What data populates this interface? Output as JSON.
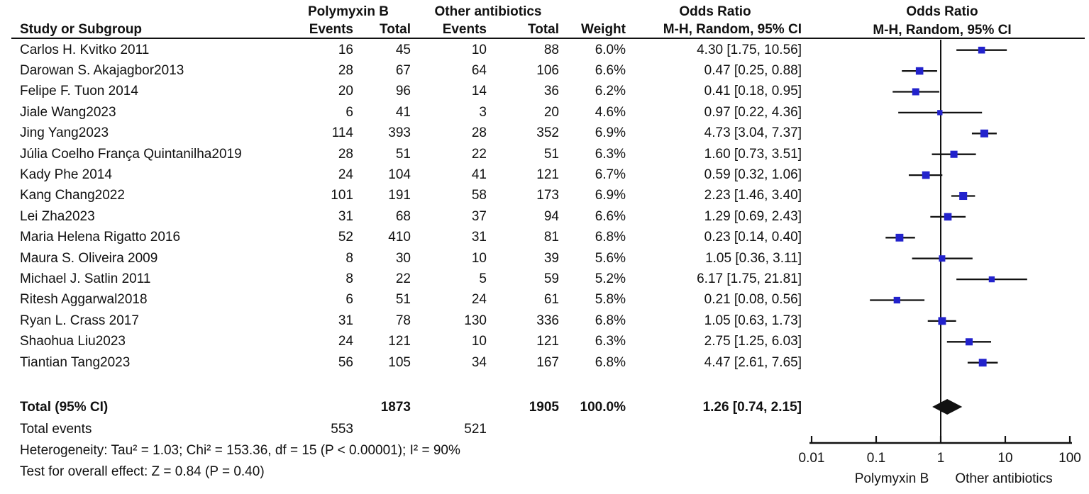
{
  "header": {
    "group1": "Polymyxin B",
    "group2": "Other antibiotics",
    "or_col_title": "Odds Ratio",
    "or_plot_title": "Odds Ratio",
    "study": "Study or Subgroup",
    "events1": "Events",
    "total1": "Total",
    "events2": "Events",
    "total2": "Total",
    "weight": "Weight",
    "or_method": "M-H, Random, 95% CI",
    "or_plot_method": "M-H, Random, 95% CI"
  },
  "chart_data": {
    "type": "scatter",
    "subtype": "forest-plot",
    "x_scale": "log10",
    "x_ticks": [
      "0.01",
      "0.1",
      "1",
      "10",
      "100"
    ],
    "x_tick_values": [
      0.01,
      0.1,
      1,
      10,
      100
    ],
    "xlim": [
      0.01,
      100
    ],
    "axis_left_label": "Polymyxin B",
    "axis_right_label": "Other antibiotics",
    "marker_color": "#2222cc",
    "line_color": "#111111",
    "studies": [
      {
        "name": "Carlos H. Kvitko 2011",
        "events1": 16,
        "total1": 45,
        "events2": 10,
        "total2": 88,
        "weight": "6.0%",
        "weight_value": 6.0,
        "or": 4.3,
        "ci_low": 1.75,
        "ci_high": 10.56,
        "or_label": "4.30 [1.75, 10.56]"
      },
      {
        "name": "Darowan S. Akajagbor2013",
        "events1": 28,
        "total1": 67,
        "events2": 64,
        "total2": 106,
        "weight": "6.6%",
        "weight_value": 6.6,
        "or": 0.47,
        "ci_low": 0.25,
        "ci_high": 0.88,
        "or_label": "0.47 [0.25, 0.88]"
      },
      {
        "name": "Felipe F. Tuon 2014",
        "events1": 20,
        "total1": 96,
        "events2": 14,
        "total2": 36,
        "weight": "6.2%",
        "weight_value": 6.2,
        "or": 0.41,
        "ci_low": 0.18,
        "ci_high": 0.95,
        "or_label": "0.41 [0.18, 0.95]"
      },
      {
        "name": "Jiale Wang2023",
        "events1": 6,
        "total1": 41,
        "events2": 3,
        "total2": 20,
        "weight": "4.6%",
        "weight_value": 4.6,
        "or": 0.97,
        "ci_low": 0.22,
        "ci_high": 4.36,
        "or_label": "0.97 [0.22, 4.36]"
      },
      {
        "name": "Jing Yang2023",
        "events1": 114,
        "total1": 393,
        "events2": 28,
        "total2": 352,
        "weight": "6.9%",
        "weight_value": 6.9,
        "or": 4.73,
        "ci_low": 3.04,
        "ci_high": 7.37,
        "or_label": "4.73 [3.04, 7.37]"
      },
      {
        "name": "Júlia Coelho França Quintanilha2019",
        "events1": 28,
        "total1": 51,
        "events2": 22,
        "total2": 51,
        "weight": "6.3%",
        "weight_value": 6.3,
        "or": 1.6,
        "ci_low": 0.73,
        "ci_high": 3.51,
        "or_label": "1.60 [0.73, 3.51]"
      },
      {
        "name": "Kady Phe 2014",
        "events1": 24,
        "total1": 104,
        "events2": 41,
        "total2": 121,
        "weight": "6.7%",
        "weight_value": 6.7,
        "or": 0.59,
        "ci_low": 0.32,
        "ci_high": 1.06,
        "or_label": "0.59 [0.32, 1.06]"
      },
      {
        "name": "Kang Chang2022",
        "events1": 101,
        "total1": 191,
        "events2": 58,
        "total2": 173,
        "weight": "6.9%",
        "weight_value": 6.9,
        "or": 2.23,
        "ci_low": 1.46,
        "ci_high": 3.4,
        "or_label": "2.23 [1.46, 3.40]"
      },
      {
        "name": "Lei Zha2023",
        "events1": 31,
        "total1": 68,
        "events2": 37,
        "total2": 94,
        "weight": "6.6%",
        "weight_value": 6.6,
        "or": 1.29,
        "ci_low": 0.69,
        "ci_high": 2.43,
        "or_label": "1.29 [0.69, 2.43]"
      },
      {
        "name": "Maria Helena Rigatto 2016",
        "events1": 52,
        "total1": 410,
        "events2": 31,
        "total2": 81,
        "weight": "6.8%",
        "weight_value": 6.8,
        "or": 0.23,
        "ci_low": 0.14,
        "ci_high": 0.4,
        "or_label": "0.23 [0.14, 0.40]"
      },
      {
        "name": "Maura S. Oliveira 2009",
        "events1": 8,
        "total1": 30,
        "events2": 10,
        "total2": 39,
        "weight": "5.6%",
        "weight_value": 5.6,
        "or": 1.05,
        "ci_low": 0.36,
        "ci_high": 3.11,
        "or_label": "1.05 [0.36, 3.11]"
      },
      {
        "name": "Michael J. Satlin 2011",
        "events1": 8,
        "total1": 22,
        "events2": 5,
        "total2": 59,
        "weight": "5.2%",
        "weight_value": 5.2,
        "or": 6.17,
        "ci_low": 1.75,
        "ci_high": 21.81,
        "or_label": "6.17 [1.75, 21.81]"
      },
      {
        "name": "Ritesh Aggarwal2018",
        "events1": 6,
        "total1": 51,
        "events2": 24,
        "total2": 61,
        "weight": "5.8%",
        "weight_value": 5.8,
        "or": 0.21,
        "ci_low": 0.08,
        "ci_high": 0.56,
        "or_label": "0.21 [0.08, 0.56]"
      },
      {
        "name": "Ryan L. Crass 2017",
        "events1": 31,
        "total1": 78,
        "events2": 130,
        "total2": 336,
        "weight": "6.8%",
        "weight_value": 6.8,
        "or": 1.05,
        "ci_low": 0.63,
        "ci_high": 1.73,
        "or_label": "1.05 [0.63, 1.73]"
      },
      {
        "name": "Shaohua Liu2023",
        "events1": 24,
        "total1": 121,
        "events2": 10,
        "total2": 121,
        "weight": "6.3%",
        "weight_value": 6.3,
        "or": 2.75,
        "ci_low": 1.25,
        "ci_high": 6.03,
        "or_label": "2.75 [1.25, 6.03]"
      },
      {
        "name": "Tiantian Tang2023",
        "events1": 56,
        "total1": 105,
        "events2": 34,
        "total2": 167,
        "weight": "6.8%",
        "weight_value": 6.8,
        "or": 4.47,
        "ci_low": 2.61,
        "ci_high": 7.65,
        "or_label": "4.47 [2.61, 7.65]"
      }
    ],
    "total": {
      "label": "Total (95% CI)",
      "total1": 1873,
      "total2": 1905,
      "weight": "100.0%",
      "or": 1.26,
      "ci_low": 0.74,
      "ci_high": 2.15,
      "or_label": "1.26 [0.74, 2.15]"
    },
    "total_events": {
      "label": "Total events",
      "events1": 553,
      "events2": 521
    },
    "heterogeneity": "Heterogeneity: Tau² = 1.03; Chi² = 153.36, df = 15 (P < 0.00001); I² = 90%",
    "overall_effect": "Test for overall effect: Z = 0.84 (P = 0.40)"
  }
}
